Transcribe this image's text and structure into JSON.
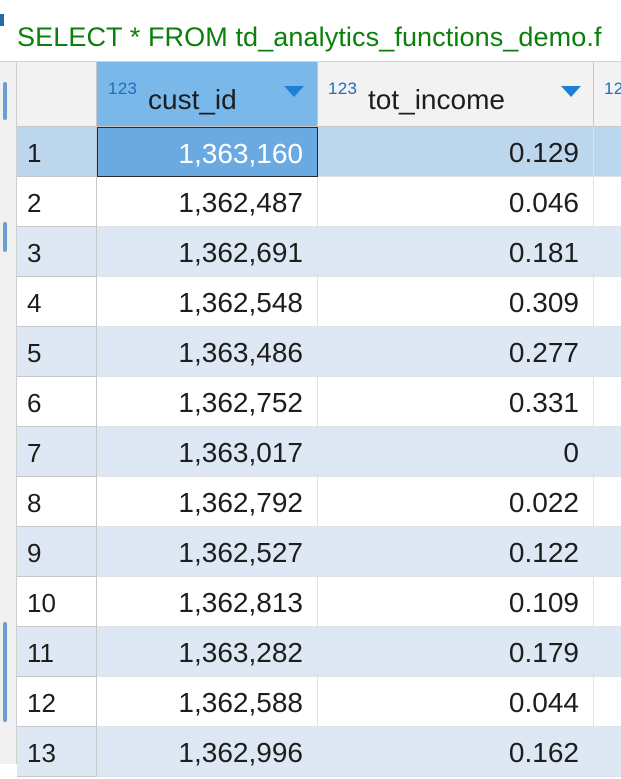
{
  "query": {
    "sql_text": "SELECT * FROM td_analytics_functions_demo.f"
  },
  "grid": {
    "columns": [
      {
        "type_tag": "123",
        "name": "cust_id"
      },
      {
        "type_tag": "123",
        "name": "tot_income"
      },
      {
        "type_tag": "12",
        "name": ""
      }
    ],
    "rows": [
      {
        "num": "1",
        "cust_id": "1,363,160",
        "tot_income": "0.129"
      },
      {
        "num": "2",
        "cust_id": "1,362,487",
        "tot_income": "0.046"
      },
      {
        "num": "3",
        "cust_id": "1,362,691",
        "tot_income": "0.181"
      },
      {
        "num": "4",
        "cust_id": "1,362,548",
        "tot_income": "0.309"
      },
      {
        "num": "5",
        "cust_id": "1,363,486",
        "tot_income": "0.277"
      },
      {
        "num": "6",
        "cust_id": "1,362,752",
        "tot_income": "0.331"
      },
      {
        "num": "7",
        "cust_id": "1,363,017",
        "tot_income": "0"
      },
      {
        "num": "8",
        "cust_id": "1,362,792",
        "tot_income": "0.022"
      },
      {
        "num": "9",
        "cust_id": "1,362,527",
        "tot_income": "0.122"
      },
      {
        "num": "10",
        "cust_id": "1,362,813",
        "tot_income": "0.109"
      },
      {
        "num": "11",
        "cust_id": "1,363,282",
        "tot_income": "0.179"
      },
      {
        "num": "12",
        "cust_id": "1,362,588",
        "tot_income": "0.044"
      },
      {
        "num": "13",
        "cust_id": "1,362,996",
        "tot_income": "0.162"
      }
    ],
    "selected_row": "1",
    "focused_cell": "cust_id"
  },
  "colors": {
    "query_text": "#0a7f0a",
    "selected_header": "#7ab8ea",
    "selected_row": "#bcd6ee",
    "focused_cell": "#6aaae0",
    "stripe": "#dde8f4",
    "sort_arrow": "#1f7fd6"
  },
  "icons": {
    "sort": "chevron-down-icon"
  }
}
